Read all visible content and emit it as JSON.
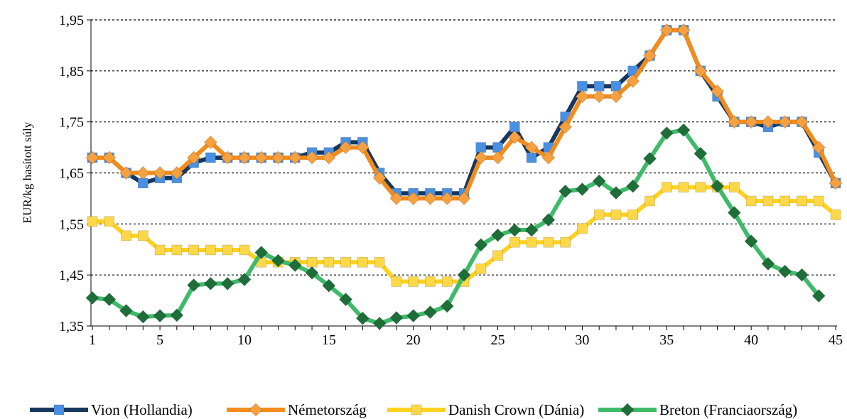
{
  "chart_data": {
    "type": "line",
    "title": "",
    "xlabel": "",
    "ylabel": "EUR/kg hasított súly",
    "x": [
      1,
      2,
      3,
      4,
      5,
      6,
      7,
      8,
      9,
      10,
      11,
      12,
      13,
      14,
      15,
      16,
      17,
      18,
      19,
      20,
      21,
      22,
      23,
      24,
      25,
      26,
      27,
      28,
      29,
      30,
      31,
      32,
      33,
      34,
      35,
      36,
      37,
      38,
      39,
      40,
      41,
      42,
      43,
      44,
      45
    ],
    "x_ticks": [
      1,
      5,
      10,
      15,
      20,
      25,
      30,
      35,
      40,
      45
    ],
    "y_ticks": [
      "1,35",
      "1,45",
      "1,55",
      "1,65",
      "1,75",
      "1,85",
      "1,95"
    ],
    "ylim": [
      1.35,
      1.95
    ],
    "xlim": [
      1,
      45
    ],
    "grid": "horizontal dotted",
    "legend_position": "bottom",
    "series": [
      {
        "name": "Vion (Hollandia)",
        "color": "#17375e",
        "marker_color": "#4a90e2",
        "marker": "square",
        "values": [
          1.68,
          1.68,
          1.65,
          1.63,
          1.64,
          1.64,
          1.67,
          1.68,
          1.68,
          1.68,
          1.68,
          1.68,
          1.68,
          1.69,
          1.69,
          1.71,
          1.71,
          1.65,
          1.61,
          1.61,
          1.61,
          1.61,
          1.61,
          1.7,
          1.7,
          1.74,
          1.68,
          1.7,
          1.76,
          1.82,
          1.82,
          1.82,
          1.85,
          1.88,
          1.93,
          1.93,
          1.85,
          1.8,
          1.75,
          1.75,
          1.74,
          1.75,
          1.75,
          1.69,
          1.63
        ]
      },
      {
        "name": "Németország",
        "color": "#f28c1c",
        "marker_color": "#f7a040",
        "marker": "diamond",
        "values": [
          1.68,
          1.68,
          1.65,
          1.65,
          1.65,
          1.65,
          1.68,
          1.71,
          1.68,
          1.68,
          1.68,
          1.68,
          1.68,
          1.68,
          1.68,
          1.7,
          1.7,
          1.64,
          1.6,
          1.6,
          1.6,
          1.6,
          1.6,
          1.68,
          1.68,
          1.72,
          1.7,
          1.68,
          1.74,
          1.8,
          1.8,
          1.8,
          1.83,
          1.88,
          1.93,
          1.93,
          1.85,
          1.81,
          1.75,
          1.75,
          1.75,
          1.75,
          1.75,
          1.7,
          1.63
        ]
      },
      {
        "name": "Danish Crown (Dánia)",
        "color": "#ffd21f",
        "marker_color": "#ffd84a",
        "marker": "square",
        "values": [
          1.555,
          1.555,
          1.527,
          1.527,
          1.499,
          1.499,
          1.499,
          1.499,
          1.499,
          1.499,
          1.475,
          1.475,
          1.475,
          1.475,
          1.475,
          1.475,
          1.475,
          1.475,
          1.437,
          1.437,
          1.437,
          1.437,
          1.437,
          1.462,
          1.488,
          1.514,
          1.514,
          1.514,
          1.514,
          1.541,
          1.568,
          1.568,
          1.568,
          1.595,
          1.622,
          1.622,
          1.622,
          1.622,
          1.622,
          1.595,
          1.595,
          1.595,
          1.595,
          1.595,
          1.568
        ]
      },
      {
        "name": "Breton (Franciaország)",
        "color": "#3fba6a",
        "marker_color": "#1f6e3a",
        "marker": "diamond",
        "values": [
          1.405,
          1.402,
          1.38,
          1.368,
          1.37,
          1.371,
          1.43,
          1.433,
          1.433,
          1.441,
          1.494,
          1.478,
          1.469,
          1.454,
          1.429,
          1.402,
          1.365,
          1.355,
          1.366,
          1.37,
          1.377,
          1.389,
          1.45,
          1.509,
          1.528,
          1.538,
          1.538,
          1.558,
          1.614,
          1.618,
          1.634,
          1.611,
          1.624,
          1.678,
          1.728,
          1.734,
          1.688,
          1.624,
          1.572,
          1.516,
          1.472,
          1.457,
          1.45,
          1.409,
          null
        ]
      }
    ]
  }
}
